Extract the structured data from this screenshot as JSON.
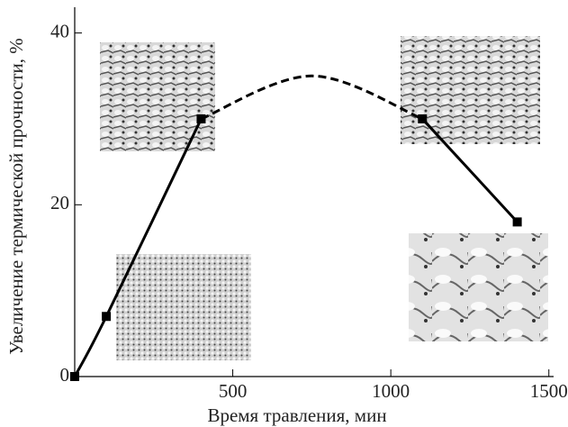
{
  "chart_data": {
    "type": "line",
    "x_label": "Время травления, мин",
    "y_label": "Увеличение термической прочности, %",
    "x": [
      0,
      100,
      400,
      750,
      1100,
      1400
    ],
    "series": [
      {
        "color": "#000000",
        "dashed": false,
        "markers": true,
        "values": [
          0,
          7,
          30,
          null,
          30,
          18
        ]
      },
      {
        "color": "#000000",
        "dashed": true,
        "markers": false,
        "values": [
          null,
          null,
          30,
          35,
          30,
          null
        ]
      }
    ],
    "xlim": [
      0,
      1515
    ],
    "xticks": [
      500,
      1000,
      1500
    ],
    "ylim": [
      0,
      43
    ],
    "yticks": [
      0,
      20,
      40
    ],
    "grid": false
  }
}
